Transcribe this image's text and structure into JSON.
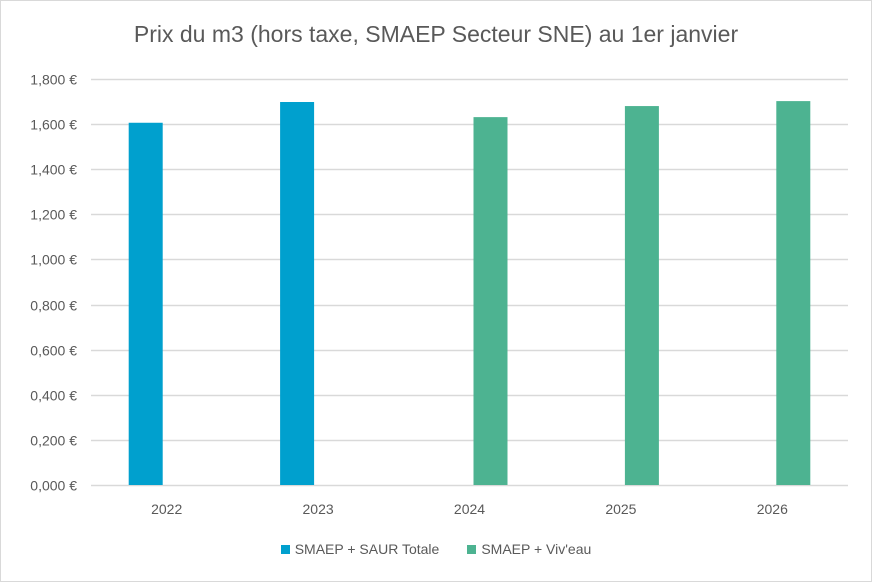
{
  "chart_data": {
    "type": "bar",
    "title": "Prix du m3 (hors taxe, SMAEP Secteur SNE) au 1er janvier",
    "xlabel": "",
    "ylabel": "",
    "categories": [
      "2022",
      "2023",
      "2024",
      "2025",
      "2026"
    ],
    "series": [
      {
        "name": "SMAEP + SAUR Totale",
        "color": "#00a0ce",
        "values": [
          1.606,
          1.698,
          null,
          null,
          null
        ]
      },
      {
        "name": "SMAEP + Viv'eau",
        "color": "#4db391",
        "values": [
          null,
          null,
          1.631,
          1.68,
          1.702
        ]
      }
    ],
    "ylim": [
      0,
      1.8
    ],
    "yticks": [
      0,
      0.2,
      0.4,
      0.6,
      0.8,
      1.0,
      1.2,
      1.4,
      1.6,
      1.8
    ],
    "ytick_labels": [
      "0,000 €",
      "0,200 €",
      "0,400 €",
      "0,600 €",
      "0,800 €",
      "1,000 €",
      "1,200 €",
      "1,400 €",
      "1,600 €",
      "1,800 €"
    ],
    "grid": true,
    "legend_position": "bottom"
  }
}
